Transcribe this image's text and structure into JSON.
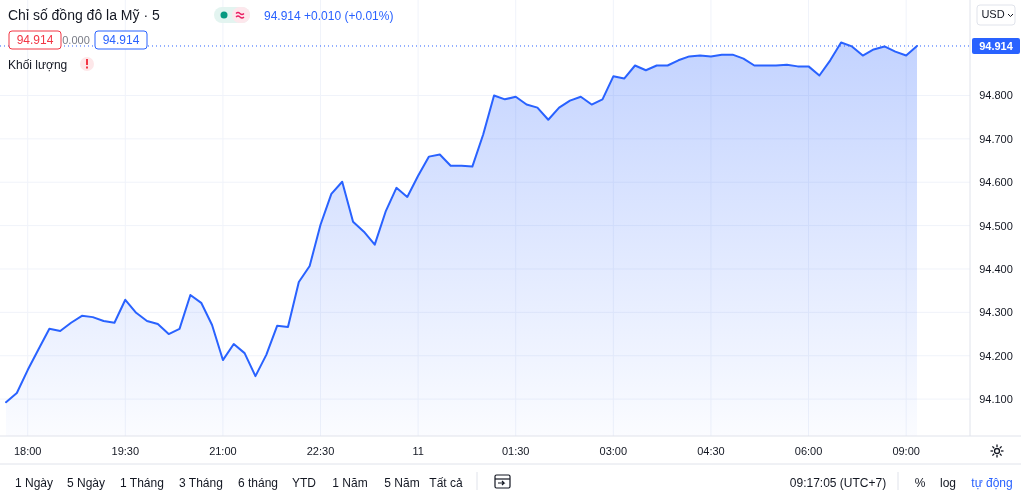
{
  "chart_data": {
    "type": "area",
    "title": "Chỉ số đồng đô la Mỹ · 5",
    "subtitle": "94.914 +0.010 (+0.01%)",
    "categories": [
      null,
      null,
      "18:00",
      null,
      null,
      null,
      null,
      null,
      null,
      null,
      null,
      "19:30",
      null,
      null,
      null,
      null,
      null,
      null,
      null,
      null,
      "21:00",
      null,
      null,
      null,
      null,
      null,
      null,
      null,
      null,
      "22:30",
      null,
      null,
      null,
      null,
      null,
      null,
      null,
      null,
      "11",
      null,
      null,
      null,
      null,
      null,
      null,
      null,
      null,
      "01:30",
      null,
      null,
      null,
      null,
      null,
      null,
      null,
      null,
      "03:00",
      null,
      null,
      null,
      null,
      null,
      null,
      null,
      null,
      "04:30",
      null,
      null,
      null,
      null,
      null,
      null,
      null,
      null,
      "06:00",
      null,
      null,
      null,
      null,
      null,
      null,
      null,
      null,
      "09:00",
      null
    ],
    "series": [
      {
        "color": "#2962ff",
        "values": [
          94.093,
          94.114,
          94.167,
          94.215,
          94.262,
          94.257,
          94.276,
          94.292,
          94.289,
          94.28,
          94.276,
          94.329,
          94.299,
          94.28,
          94.273,
          94.25,
          94.262,
          94.34,
          94.322,
          94.271,
          94.19,
          94.227,
          94.206,
          94.153,
          94.202,
          94.269,
          94.266,
          94.37,
          94.407,
          94.502,
          94.573,
          94.601,
          94.509,
          94.486,
          94.456,
          94.532,
          94.587,
          94.566,
          94.615,
          94.659,
          94.664,
          94.638,
          94.638,
          94.636,
          94.71,
          94.8,
          94.791,
          94.797,
          94.779,
          94.772,
          94.744,
          94.772,
          94.788,
          94.797,
          94.779,
          94.791,
          94.844,
          94.839,
          94.869,
          94.858,
          94.869,
          94.869,
          94.881,
          94.89,
          94.892,
          94.89,
          94.894,
          94.894,
          94.885,
          94.869,
          94.869,
          94.869,
          94.871,
          94.867,
          94.867,
          94.846,
          94.881,
          94.922,
          94.913,
          94.892,
          94.906,
          94.913,
          94.901,
          94.892,
          94.914
        ]
      }
    ],
    "ylim": [
      94.015,
      95.02
    ],
    "yticks": [
      {
        "value": 94.1,
        "label": "94.100"
      },
      {
        "value": 94.2,
        "label": "94.200"
      },
      {
        "value": 94.3,
        "label": "94.300"
      },
      {
        "value": 94.4,
        "label": "94.400"
      },
      {
        "value": 94.5,
        "label": "94.500"
      },
      {
        "value": 94.6,
        "label": "94.600"
      },
      {
        "value": 94.7,
        "label": "94.700"
      },
      {
        "value": 94.8,
        "label": "94.800"
      }
    ],
    "ref_lines": [
      {
        "axis": "y",
        "value": 94.914,
        "label": "94.914",
        "color": "#2962ff",
        "line_style": "dotted"
      }
    ],
    "grid": true,
    "annotations": [
      "94.914",
      "0.000",
      "94.914",
      "Khối lượng",
      "USD",
      "1 Ngày",
      "5 Ngày",
      "1 Tháng",
      "3 Tháng",
      "6 tháng",
      "YTD",
      "1 Năm",
      "5 Năm",
      "Tất cả",
      "09:17:05 (UTC+7)",
      "%",
      "log",
      "tự động"
    ]
  }
}
